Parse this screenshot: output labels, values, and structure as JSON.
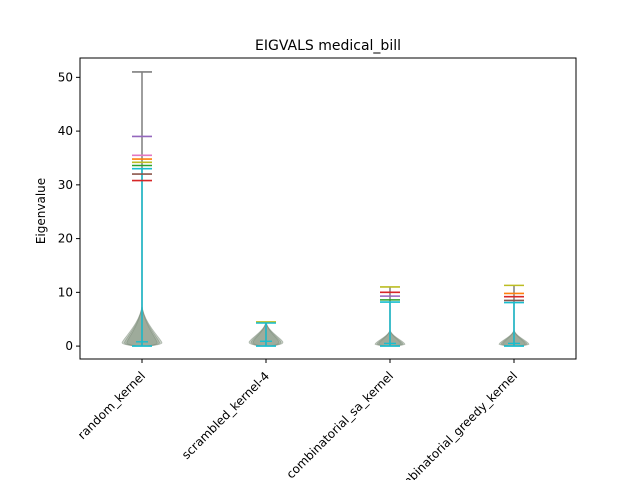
{
  "chart_data": {
    "type": "violin",
    "title": "EIGVALS medical_bill",
    "xlabel": "",
    "ylabel": "Eigenvalue",
    "ylim": [
      -2.4,
      53.6
    ],
    "yticks": [
      0,
      10,
      20,
      30,
      40,
      50
    ],
    "grid": false,
    "categories": [
      "random_kernel",
      "scrambled_kernel-4",
      "combinatorial_sa_kernel",
      "combinatorial_greedy_kernel"
    ],
    "palette": [
      "#1f77b4",
      "#ff7f0e",
      "#2ca02c",
      "#d62728",
      "#9467bd",
      "#8c564b",
      "#e377c2",
      "#7f7f7f",
      "#bcbd22",
      "#17becf"
    ],
    "groups": [
      {
        "category": "random_kernel",
        "max_marks": [
          {
            "value": 51.0,
            "color": "#7f7f7f"
          },
          {
            "value": 39.0,
            "color": "#9467bd"
          },
          {
            "value": 35.5,
            "color": "#e377c2"
          },
          {
            "value": 34.8,
            "color": "#ff7f0e"
          },
          {
            "value": 34.2,
            "color": "#bcbd22"
          },
          {
            "value": 33.6,
            "color": "#2ca02c"
          },
          {
            "value": 33.0,
            "color": "#17becf"
          },
          {
            "value": 32.0,
            "color": "#8c564b"
          },
          {
            "value": 30.8,
            "color": "#d62728"
          }
        ],
        "min": 0.0,
        "mean": 0.8,
        "bulk_max": 7.5,
        "width_scale": 1.0
      },
      {
        "category": "scrambled_kernel-4",
        "max_marks": [
          {
            "value": 4.5,
            "color": "#bcbd22"
          },
          {
            "value": 4.3,
            "color": "#17becf"
          }
        ],
        "min": 0.0,
        "mean": 0.9,
        "bulk_max": 4.5,
        "width_scale": 0.85
      },
      {
        "category": "combinatorial_sa_kernel",
        "max_marks": [
          {
            "value": 11.0,
            "color": "#bcbd22"
          },
          {
            "value": 10.0,
            "color": "#d62728"
          },
          {
            "value": 9.3,
            "color": "#9467bd"
          },
          {
            "value": 8.6,
            "color": "#2ca02c"
          },
          {
            "value": 8.2,
            "color": "#17becf"
          }
        ],
        "min": 0.0,
        "mean": 0.5,
        "bulk_max": 3.0,
        "width_scale": 0.75
      },
      {
        "category": "combinatorial_greedy_kernel",
        "max_marks": [
          {
            "value": 11.3,
            "color": "#bcbd22"
          },
          {
            "value": 9.8,
            "color": "#ff7f0e"
          },
          {
            "value": 9.2,
            "color": "#d62728"
          },
          {
            "value": 8.5,
            "color": "#8c564b"
          },
          {
            "value": 8.1,
            "color": "#17becf"
          }
        ],
        "min": 0.0,
        "mean": 0.5,
        "bulk_max": 3.0,
        "width_scale": 0.75
      }
    ]
  }
}
